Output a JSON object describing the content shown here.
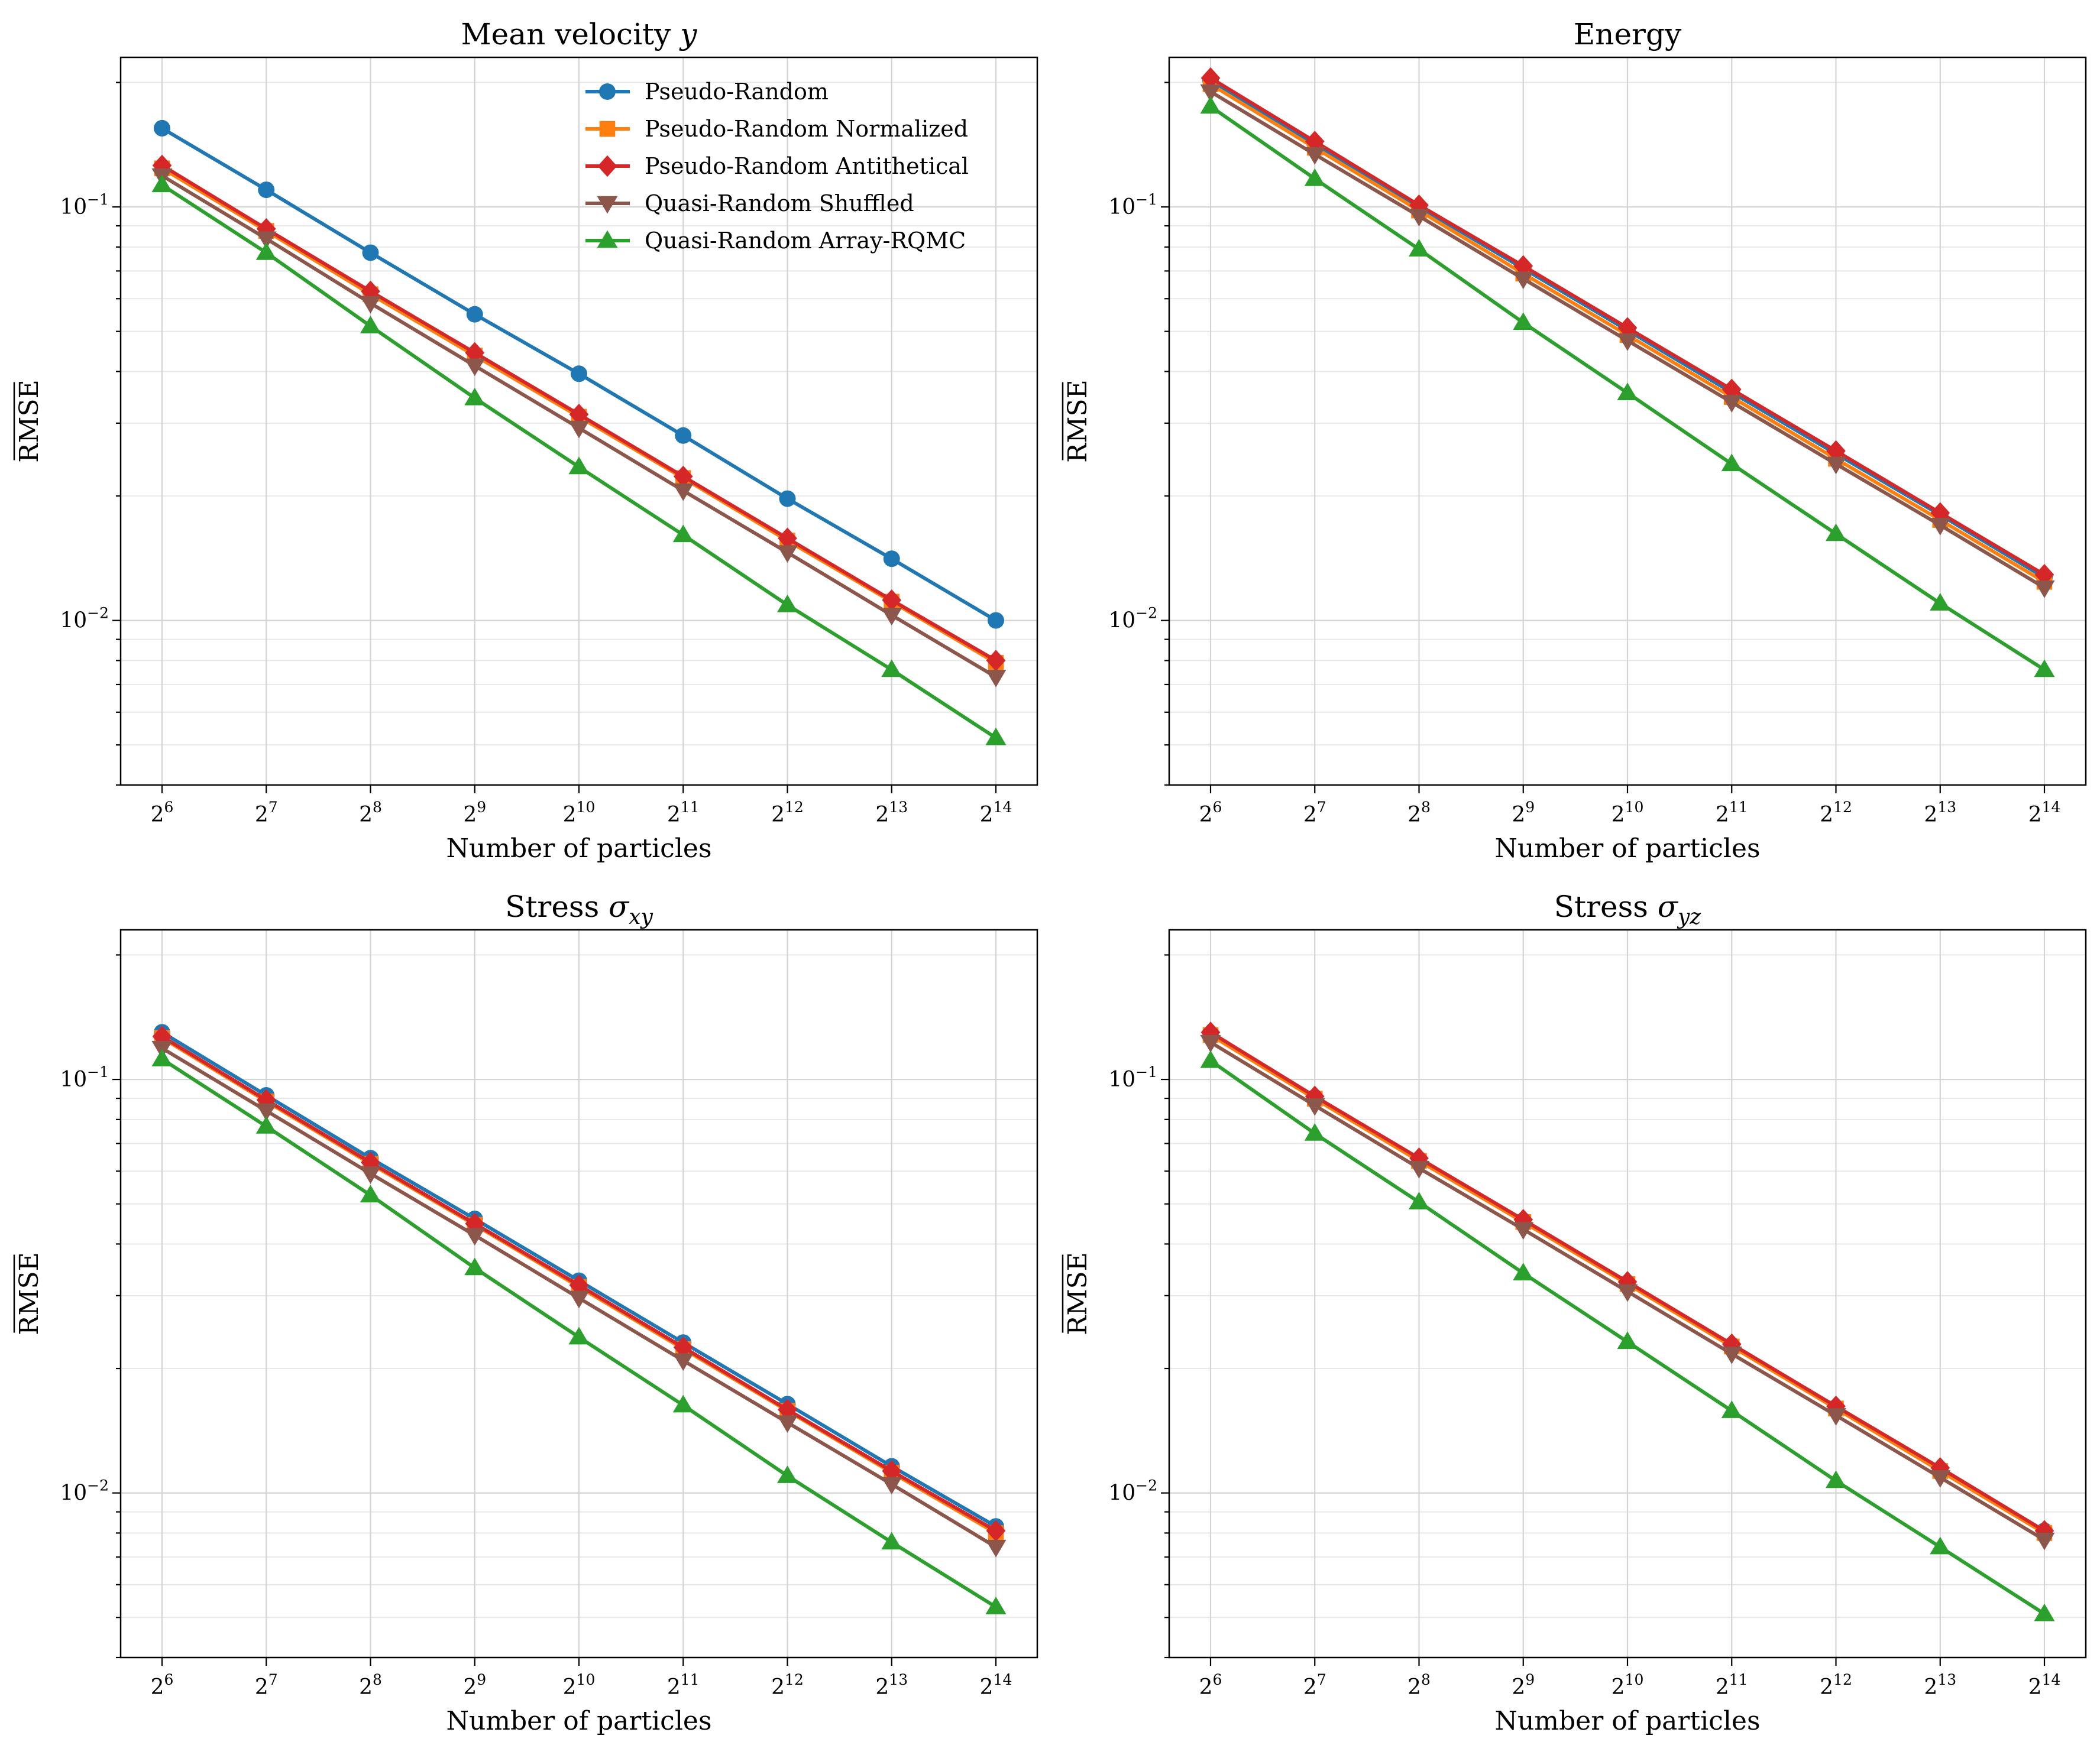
{
  "chart_data": [
    {
      "type": "line",
      "title_main": "Mean velocity ",
      "title_sym": "y",
      "title_sub": "",
      "xlabel": "Number of particles",
      "ylabel": "RMSE",
      "yscale": "log",
      "ylim": [
        0.004,
        0.23
      ],
      "x_exponents": [
        6,
        7,
        8,
        9,
        10,
        11,
        12,
        13,
        14
      ],
      "x_base": "2",
      "y_major_ticks": [
        {
          "mant": "10",
          "exp": "−2",
          "value": 0.01
        },
        {
          "mant": "10",
          "exp": "−1",
          "value": 0.1
        }
      ],
      "grid": true,
      "legend": "top-right",
      "series": [
        {
          "name": "Pseudo-Random",
          "color": "#1f77b4",
          "marker": "circle",
          "values": [
            0.155,
            0.11,
            0.0775,
            0.055,
            0.0395,
            0.028,
            0.0197,
            0.0141,
            0.01
          ]
        },
        {
          "name": "Pseudo-Random Normalized",
          "color": "#ff7f0e",
          "marker": "square",
          "values": [
            0.124,
            0.0875,
            0.0615,
            0.0437,
            0.0311,
            0.0221,
            0.0156,
            0.0111,
            0.0079
          ]
        },
        {
          "name": "Pseudo-Random Antithetical",
          "color": "#d62728",
          "marker": "diamond",
          "values": [
            0.126,
            0.0885,
            0.0625,
            0.0444,
            0.0315,
            0.0223,
            0.0158,
            0.0112,
            0.008
          ]
        },
        {
          "name": "Quasi-Random Shuffled",
          "color": "#8c564b",
          "marker": "triangle-down",
          "values": [
            0.119,
            0.0838,
            0.0585,
            0.0413,
            0.0292,
            0.0206,
            0.0146,
            0.0103,
            0.0073
          ]
        },
        {
          "name": "Quasi-Random Array-RQMC",
          "color": "#2ca02c",
          "marker": "triangle-up",
          "values": [
            0.113,
            0.0775,
            0.0515,
            0.0345,
            0.0235,
            0.0161,
            0.0109,
            0.0076,
            0.0052
          ]
        }
      ]
    },
    {
      "type": "line",
      "title_main": "Energy",
      "title_sym": "",
      "title_sub": "",
      "xlabel": "Number of particles",
      "ylabel": "RMSE",
      "yscale": "log",
      "ylim": [
        0.004,
        0.23
      ],
      "x_exponents": [
        6,
        7,
        8,
        9,
        10,
        11,
        12,
        13,
        14
      ],
      "x_base": "2",
      "y_major_ticks": [
        {
          "mant": "10",
          "exp": "−2",
          "value": 0.01
        },
        {
          "mant": "10",
          "exp": "−1",
          "value": 0.1
        }
      ],
      "grid": true,
      "legend": "none",
      "series": [
        {
          "name": "Pseudo-Random",
          "color": "#1f77b4",
          "marker": "circle",
          "values": [
            0.202,
            0.142,
            0.1,
            0.071,
            0.0503,
            0.0356,
            0.0253,
            0.018,
            0.0127
          ]
        },
        {
          "name": "Pseudo-Random Normalized",
          "color": "#ff7f0e",
          "marker": "square",
          "values": [
            0.198,
            0.139,
            0.098,
            0.069,
            0.049,
            0.0347,
            0.0246,
            0.0175,
            0.0124
          ]
        },
        {
          "name": "Pseudo-Random Antithetical",
          "color": "#d62728",
          "marker": "diamond",
          "values": [
            0.205,
            0.144,
            0.101,
            0.072,
            0.051,
            0.0362,
            0.0257,
            0.0182,
            0.0129
          ]
        },
        {
          "name": "Quasi-Random Shuffled",
          "color": "#8c564b",
          "marker": "triangle-down",
          "values": [
            0.19,
            0.134,
            0.095,
            0.067,
            0.0475,
            0.0337,
            0.0239,
            0.017,
            0.012
          ]
        },
        {
          "name": "Quasi-Random Array-RQMC",
          "color": "#2ca02c",
          "marker": "triangle-up",
          "values": [
            0.175,
            0.117,
            0.079,
            0.0525,
            0.0355,
            0.0239,
            0.0162,
            0.011,
            0.0076
          ]
        }
      ]
    },
    {
      "type": "line",
      "title_main": "Stress ",
      "title_sym": "σ",
      "title_sub": "xy",
      "xlabel": "Number of particles",
      "ylabel": "RMSE",
      "yscale": "log",
      "ylim": [
        0.004,
        0.23
      ],
      "x_exponents": [
        6,
        7,
        8,
        9,
        10,
        11,
        12,
        13,
        14
      ],
      "x_base": "2",
      "y_major_ticks": [
        {
          "mant": "10",
          "exp": "−2",
          "value": 0.01
        },
        {
          "mant": "10",
          "exp": "−1",
          "value": 0.1
        }
      ],
      "grid": true,
      "legend": "none",
      "series": [
        {
          "name": "Pseudo-Random",
          "color": "#1f77b4",
          "marker": "circle",
          "values": [
            0.13,
            0.0915,
            0.0645,
            0.046,
            0.0326,
            0.0231,
            0.0164,
            0.0116,
            0.0083
          ]
        },
        {
          "name": "Pseudo-Random Normalized",
          "color": "#ff7f0e",
          "marker": "square",
          "values": [
            0.126,
            0.0885,
            0.0625,
            0.0445,
            0.0315,
            0.0223,
            0.0158,
            0.0112,
            0.008
          ]
        },
        {
          "name": "Pseudo-Random Antithetical",
          "color": "#d62728",
          "marker": "diamond",
          "values": [
            0.127,
            0.0892,
            0.063,
            0.0448,
            0.0318,
            0.0225,
            0.0159,
            0.0113,
            0.0081
          ]
        },
        {
          "name": "Quasi-Random Shuffled",
          "color": "#8c564b",
          "marker": "triangle-down",
          "values": [
            0.119,
            0.084,
            0.0592,
            0.042,
            0.0296,
            0.0209,
            0.0148,
            0.0105,
            0.0074
          ]
        },
        {
          "name": "Quasi-Random Array-RQMC",
          "color": "#2ca02c",
          "marker": "triangle-up",
          "values": [
            0.112,
            0.077,
            0.0525,
            0.035,
            0.0238,
            0.0163,
            0.011,
            0.0076,
            0.0053
          ]
        }
      ]
    },
    {
      "type": "line",
      "title_main": "Stress ",
      "title_sym": "σ",
      "title_sub": "yz",
      "xlabel": "Number of particles",
      "ylabel": "RMSE",
      "yscale": "log",
      "ylim": [
        0.004,
        0.23
      ],
      "x_exponents": [
        6,
        7,
        8,
        9,
        10,
        11,
        12,
        13,
        14
      ],
      "x_base": "2",
      "y_major_ticks": [
        {
          "mant": "10",
          "exp": "−2",
          "value": 0.01
        },
        {
          "mant": "10",
          "exp": "−1",
          "value": 0.1
        }
      ],
      "grid": true,
      "legend": "none",
      "series": [
        {
          "name": "Pseudo-Random",
          "color": "#1f77b4",
          "marker": "circle",
          "values": [
            0.129,
            0.0905,
            0.064,
            0.0455,
            0.0322,
            0.0228,
            0.0161,
            0.0114,
            0.0081
          ]
        },
        {
          "name": "Pseudo-Random Normalized",
          "color": "#ff7f0e",
          "marker": "square",
          "values": [
            0.128,
            0.0898,
            0.0635,
            0.0452,
            0.032,
            0.0226,
            0.016,
            0.0113,
            0.008
          ]
        },
        {
          "name": "Pseudo-Random Antithetical",
          "color": "#d62728",
          "marker": "diamond",
          "values": [
            0.13,
            0.091,
            0.0645,
            0.0458,
            0.0324,
            0.0229,
            0.0162,
            0.0115,
            0.0081
          ]
        },
        {
          "name": "Quasi-Random Shuffled",
          "color": "#8c564b",
          "marker": "triangle-down",
          "values": [
            0.123,
            0.0865,
            0.061,
            0.0434,
            0.0307,
            0.0217,
            0.0154,
            0.0109,
            0.0077
          ]
        },
        {
          "name": "Quasi-Random Array-RQMC",
          "color": "#2ca02c",
          "marker": "triangle-up",
          "values": [
            0.111,
            0.074,
            0.0505,
            0.034,
            0.0232,
            0.0158,
            0.0107,
            0.0074,
            0.0051
          ]
        }
      ]
    }
  ]
}
